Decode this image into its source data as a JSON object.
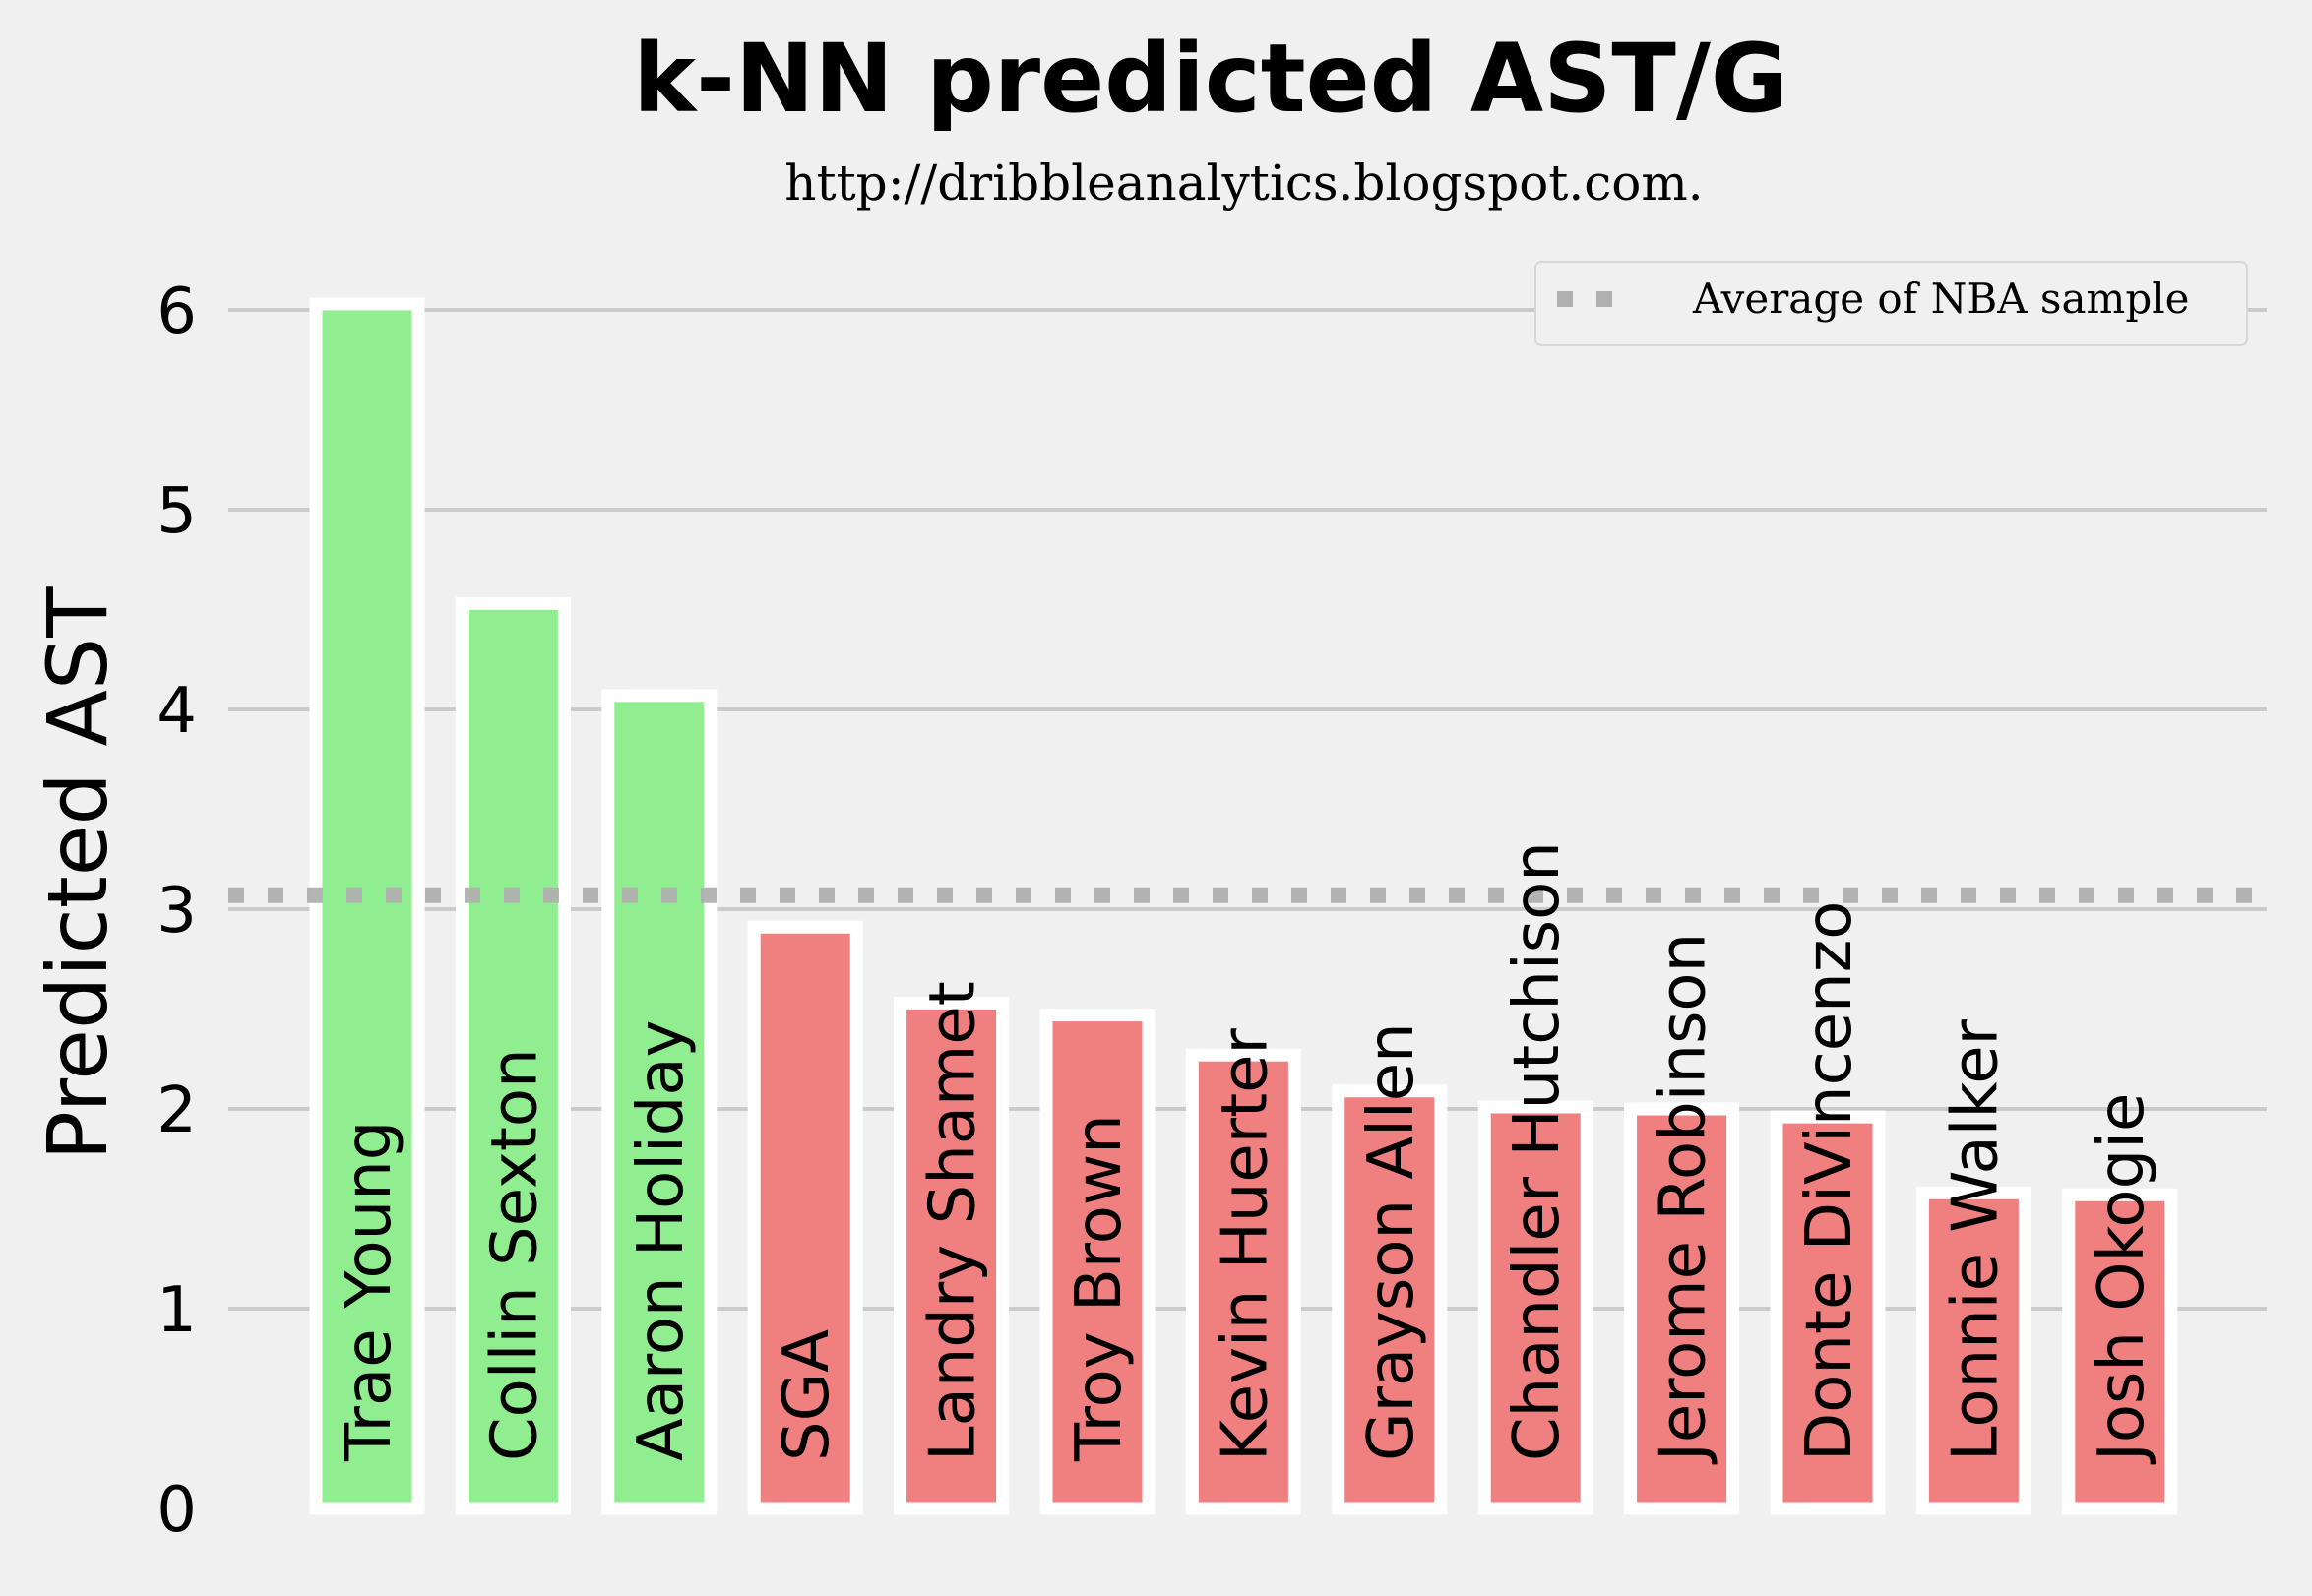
{
  "chart_data": {
    "type": "bar",
    "title": "k-NN predicted AST/G",
    "subtitle": "http://dribbleanalytics.blogspot.com.",
    "xlabel": "",
    "ylabel": "Predicted AST",
    "ylim": [
      0,
      6.25
    ],
    "yticks": [
      "0",
      "1",
      "2",
      "3",
      "4",
      "5",
      "6"
    ],
    "grid": "horizontal",
    "categories": [
      "Trae Young",
      "Collin Sexton",
      "Aaron Holiday",
      "SGA",
      "Landry Shamet",
      "Troy Brown",
      "Kevin Huerter",
      "Grayson Allen",
      "Chandler Hutchison",
      "Jerome Robinson",
      "Donte DiVincenzo",
      "Lonnie Walker",
      "Josh Okogie"
    ],
    "values": [
      6.03,
      4.53,
      4.07,
      2.91,
      2.53,
      2.47,
      2.27,
      2.09,
      2.01,
      2.0,
      1.96,
      1.58,
      1.57
    ],
    "reference_line": {
      "label": "Average of NBA sample",
      "value": 3.07,
      "color": "#b0b0b0",
      "style": "dotted"
    },
    "colors": {
      "above_average": "#90ee90",
      "below_average": "#f08080",
      "bar_edge": "#ffffff",
      "grid": "#cbcbcb",
      "background": "#f0f0f0"
    },
    "legend": {
      "position": "top-right",
      "entries": [
        "Average of NBA sample"
      ]
    }
  }
}
